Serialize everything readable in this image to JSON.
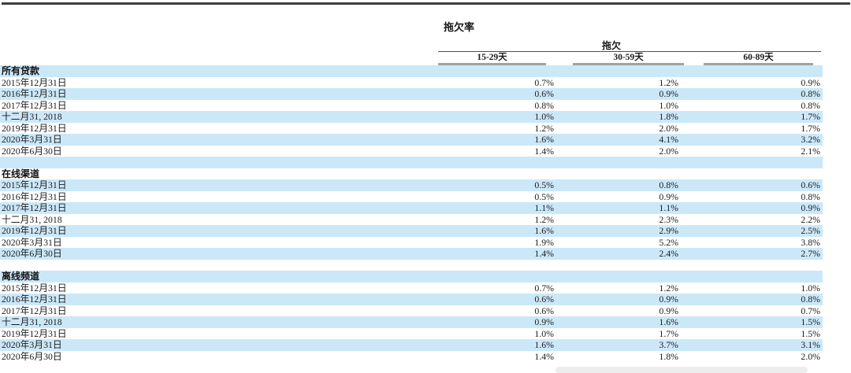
{
  "page": {
    "title": "拖欠率",
    "spanner_label": "拖欠",
    "columns": [
      "15-29天",
      "30-59天",
      "60-89天"
    ],
    "colors": {
      "stripe_blue": "#cbe8f9",
      "top_rule": "#3f3f3f",
      "spanner_rule": "#4f4f4f",
      "column_rule": "#a2a2a2",
      "text": "#1c1c1c",
      "scrollbar": "#ededed"
    }
  },
  "table": {
    "sections": [
      {
        "header": "所有贷款",
        "rows": [
          {
            "label": "2015年12月31日",
            "values": [
              "0.7%",
              "1.2%",
              "0.9%"
            ]
          },
          {
            "label": "2016年12月31日",
            "values": [
              "0.6%",
              "0.9%",
              "0.8%"
            ]
          },
          {
            "label": "2017年12月31日",
            "values": [
              "0.8%",
              "1.0%",
              "0.8%"
            ]
          },
          {
            "label": "十二月31, 2018",
            "values": [
              "1.0%",
              "1.8%",
              "1.7%"
            ]
          },
          {
            "label": "2019年12月31日",
            "values": [
              "1.2%",
              "2.0%",
              "1.7%"
            ]
          },
          {
            "label": "2020年3月31日",
            "values": [
              "1.6%",
              "4.1%",
              "3.2%"
            ]
          },
          {
            "label": "2020年6月30日",
            "values": [
              "1.4%",
              "2.0%",
              "2.1%"
            ]
          }
        ]
      },
      {
        "header": "在线渠道",
        "rows": [
          {
            "label": "2015年12月31日",
            "values": [
              "0.5%",
              "0.8%",
              "0.6%"
            ]
          },
          {
            "label": "2016年12月31日",
            "values": [
              "0.5%",
              "0.9%",
              "0.8%"
            ]
          },
          {
            "label": "2017年12月31日",
            "values": [
              "1.1%",
              "1.1%",
              "0.9%"
            ]
          },
          {
            "label": "十二月31, 2018",
            "values": [
              "1.2%",
              "2.3%",
              "2.2%"
            ]
          },
          {
            "label": "2019年12月31日",
            "values": [
              "1.6%",
              "2.9%",
              "2.5%"
            ]
          },
          {
            "label": "2020年3月31日",
            "values": [
              "1.9%",
              "5.2%",
              "3.8%"
            ]
          },
          {
            "label": "2020年6月30日",
            "values": [
              "1.4%",
              "2.4%",
              "2.7%"
            ]
          }
        ]
      },
      {
        "header": "离线频道",
        "rows": [
          {
            "label": "2015年12月31日",
            "values": [
              "0.7%",
              "1.2%",
              "1.0%"
            ]
          },
          {
            "label": "2016年12月31日",
            "values": [
              "0.6%",
              "0.9%",
              "0.8%"
            ]
          },
          {
            "label": "2017年12月31日",
            "values": [
              "0.6%",
              "0.9%",
              "0.7%"
            ]
          },
          {
            "label": "十二月31, 2018",
            "values": [
              "0.9%",
              "1.6%",
              "1.5%"
            ]
          },
          {
            "label": "2019年12月31日",
            "values": [
              "1.0%",
              "1.7%",
              "1.5%"
            ]
          },
          {
            "label": "2020年3月31日",
            "values": [
              "1.6%",
              "3.7%",
              "3.1%"
            ]
          },
          {
            "label": "2020年6月30日",
            "values": [
              "1.4%",
              "1.8%",
              "2.0%"
            ]
          }
        ]
      }
    ]
  }
}
